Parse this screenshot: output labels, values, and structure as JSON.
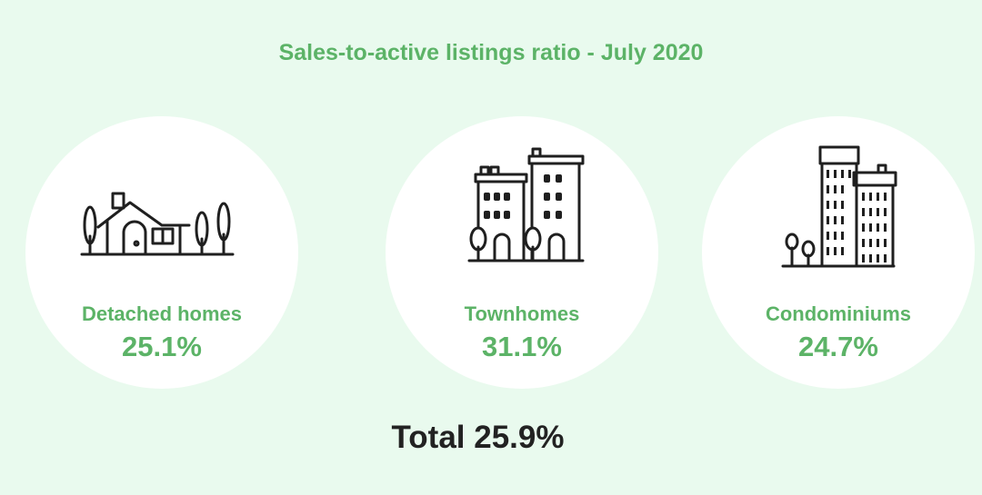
{
  "title": "Sales-to-active listings ratio - July 2020",
  "colors": {
    "accent": "#5cb367",
    "background": "#e9faee",
    "card": "#ffffff",
    "text_dark": "#222222"
  },
  "cards": [
    {
      "icon": "detached-house-icon",
      "label": "Detached homes",
      "value": "25.1%"
    },
    {
      "icon": "townhome-buildings-icon",
      "label": "Townhomes",
      "value": "31.1%"
    },
    {
      "icon": "condo-towers-icon",
      "label": "Condominiums",
      "value": "24.7%"
    }
  ],
  "total": "Total 25.9%"
}
